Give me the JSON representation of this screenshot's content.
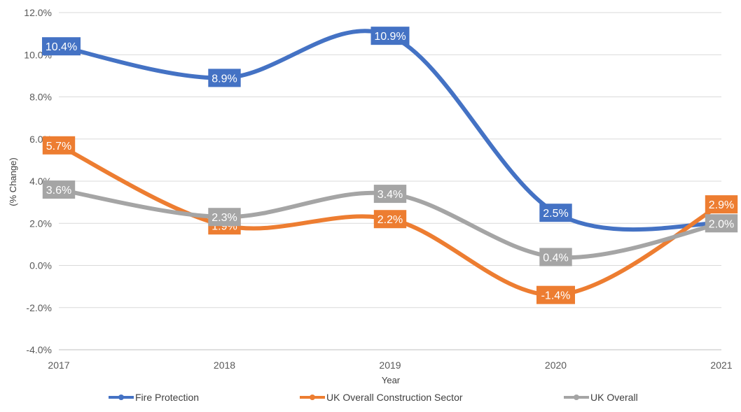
{
  "chart_data": {
    "type": "line",
    "smooth": true,
    "x": [
      "2017",
      "2018",
      "2019",
      "2020",
      "2021"
    ],
    "xlabel": "Year",
    "ylabel": "(% Change)",
    "ylim": [
      -4.0,
      12.0
    ],
    "ytick_step": 2.0,
    "ytick_format": "percent_1dp",
    "grid": "horizontal",
    "legend": "bottom",
    "data_labels": true,
    "series": [
      {
        "name": "Fire Protection",
        "color": "#4472C4",
        "values": [
          10.4,
          8.9,
          10.9,
          2.5,
          2.0
        ],
        "labels": [
          "10.4%",
          "8.9%",
          "10.9%",
          "2.5%",
          ""
        ]
      },
      {
        "name": "UK Overall Construction Sector",
        "color": "#ED7D31",
        "values": [
          5.7,
          1.9,
          2.2,
          -1.4,
          2.9
        ],
        "labels": [
          "5.7%",
          "1.9%",
          "2.2%",
          "-1.4%",
          "2.9%"
        ]
      },
      {
        "name": "UK Overall",
        "color": "#A5A5A5",
        "values": [
          3.6,
          2.3,
          3.4,
          0.4,
          2.0
        ],
        "labels": [
          "3.6%",
          "2.3%",
          "3.4%",
          "0.4%",
          "2.0%"
        ]
      }
    ]
  }
}
